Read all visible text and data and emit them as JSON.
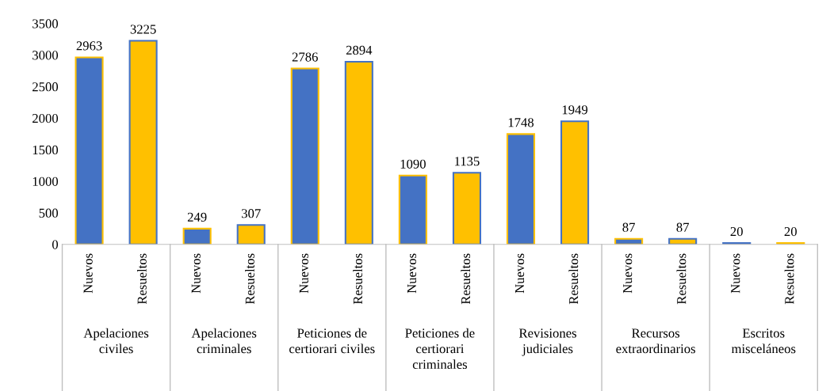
{
  "chart_data": {
    "type": "bar",
    "categories": [
      "Nuevos",
      "Resueltos",
      "Nuevos",
      "Resueltos",
      "Nuevos",
      "Resueltos",
      "Nuevos",
      "Resueltos",
      "Nuevos",
      "Resueltos",
      "Nuevos",
      "Resueltos",
      "Nuevos",
      "Resueltos"
    ],
    "values": [
      2963,
      3225,
      249,
      307,
      2786,
      2894,
      1090,
      1135,
      1748,
      1949,
      87,
      87,
      20,
      20
    ],
    "colors": [
      "#4472c4",
      "#ffc000",
      "#4472c4",
      "#ffc000",
      "#4472c4",
      "#ffc000",
      "#4472c4",
      "#ffc000",
      "#4472c4",
      "#ffc000",
      "#4472c4",
      "#ffc000",
      "#ffc000",
      "#4472c4"
    ],
    "annotations": [
      "Apelaciones civiles",
      "Apelaciones criminales",
      "Peticiones de certiorari civiles",
      "Peticiones de certiorari criminales",
      "Revisiones judiciales",
      "Recursos extraordinarios",
      "Escritos misceláneos"
    ],
    "ylim": [
      0,
      3500
    ],
    "yticks": [
      0,
      500,
      1000,
      1500,
      2000,
      2500,
      3000,
      3500
    ],
    "data_labels": true,
    "grid": false,
    "legend": false
  }
}
